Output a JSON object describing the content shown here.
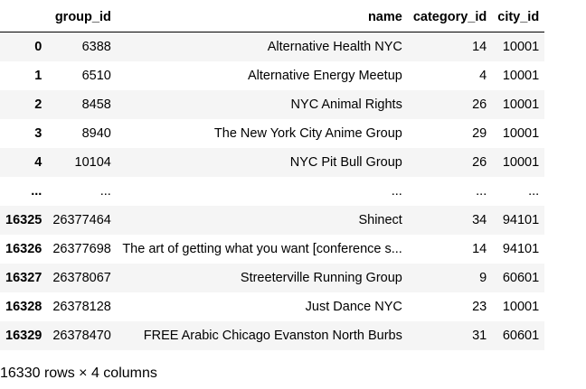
{
  "table": {
    "index_header": "",
    "columns": [
      "group_id",
      "name",
      "category_id",
      "city_id"
    ],
    "rows": [
      {
        "index": "0",
        "cells": [
          "6388",
          "Alternative Health NYC",
          "14",
          "10001"
        ]
      },
      {
        "index": "1",
        "cells": [
          "6510",
          "Alternative Energy Meetup",
          "4",
          "10001"
        ]
      },
      {
        "index": "2",
        "cells": [
          "8458",
          "NYC Animal Rights",
          "26",
          "10001"
        ]
      },
      {
        "index": "3",
        "cells": [
          "8940",
          "The New York City Anime Group",
          "29",
          "10001"
        ]
      },
      {
        "index": "4",
        "cells": [
          "10104",
          "NYC Pit Bull Group",
          "26",
          "10001"
        ]
      },
      {
        "index": "...",
        "cells": [
          "...",
          "...",
          "...",
          "..."
        ]
      },
      {
        "index": "16325",
        "cells": [
          "26377464",
          "Shinect",
          "34",
          "94101"
        ]
      },
      {
        "index": "16326",
        "cells": [
          "26377698",
          "The art of getting what you want [conference s...",
          "14",
          "94101"
        ]
      },
      {
        "index": "16327",
        "cells": [
          "26378067",
          "Streeterville Running Group",
          "9",
          "60601"
        ]
      },
      {
        "index": "16328",
        "cells": [
          "26378128",
          "Just Dance NYC",
          "23",
          "10001"
        ]
      },
      {
        "index": "16329",
        "cells": [
          "26378470",
          "FREE Arabic Chicago Evanston North Burbs",
          "31",
          "60601"
        ]
      }
    ]
  },
  "footer": {
    "shape_text": "16330 rows × 4 columns"
  }
}
